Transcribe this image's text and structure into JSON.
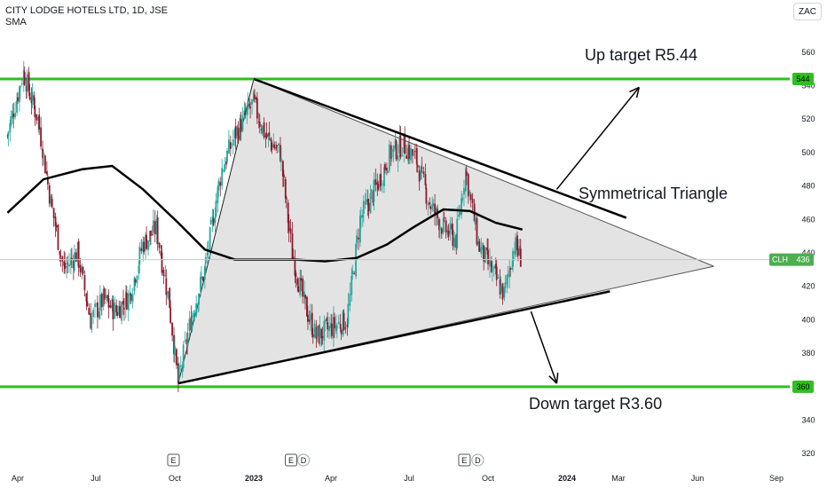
{
  "header": {
    "symbol_line": "CITY LODGE HOTELS LTD, 1D, JSE",
    "indicator": "SMA",
    "currency": "ZAC"
  },
  "annotations": {
    "up": "Up target R5.44",
    "triangle": "Symmetrical Triangle",
    "down": "Down target R3.60"
  },
  "price_axis": {
    "ticks": [
      "560",
      "540",
      "520",
      "500",
      "480",
      "460",
      "440",
      "420",
      "400",
      "380",
      "340",
      "320"
    ],
    "label_544": "544",
    "label_360": "360",
    "ticker": "CLH",
    "last_price": "436"
  },
  "time_axis": {
    "labels": [
      "Apr",
      "Jul",
      "Oct",
      "2023",
      "Apr",
      "Jul",
      "Oct",
      "2024",
      "Mar",
      "Jun",
      "Sep"
    ]
  },
  "event_markers": [
    "E",
    "E",
    "D",
    "E",
    "D"
  ],
  "colors": {
    "up_candle": "#26a69a",
    "down_candle": "#8b1a2b",
    "level_lines": "#2fbf21",
    "triangle_fill": "#e3e3e3",
    "sma": "#000000"
  },
  "chart_data": {
    "type": "candlestick",
    "title": "CITY LODGE HOTELS LTD, 1D, JSE",
    "y_unit": "ZAC",
    "ylim": [
      315,
      570
    ],
    "x_range": [
      "2022-03",
      "2024-09"
    ],
    "levels": [
      544,
      360
    ],
    "last_price": 436,
    "close_path": [
      {
        "date": "2022-03-20",
        "close": 510
      },
      {
        "date": "2022-04-08",
        "close": 548
      },
      {
        "date": "2022-04-25",
        "close": 520
      },
      {
        "date": "2022-05-10",
        "close": 470
      },
      {
        "date": "2022-05-25",
        "close": 430
      },
      {
        "date": "2022-06-10",
        "close": 440
      },
      {
        "date": "2022-06-25",
        "close": 400
      },
      {
        "date": "2022-07-10",
        "close": 412
      },
      {
        "date": "2022-07-25",
        "close": 405
      },
      {
        "date": "2022-08-10",
        "close": 415
      },
      {
        "date": "2022-08-25",
        "close": 445
      },
      {
        "date": "2022-09-10",
        "close": 455
      },
      {
        "date": "2022-09-25",
        "close": 410
      },
      {
        "date": "2022-10-05",
        "close": 362
      },
      {
        "date": "2022-10-20",
        "close": 400
      },
      {
        "date": "2022-11-05",
        "close": 430
      },
      {
        "date": "2022-11-25",
        "close": 490
      },
      {
        "date": "2022-12-10",
        "close": 510
      },
      {
        "date": "2023-01-01",
        "close": 530
      },
      {
        "date": "2023-01-15",
        "close": 510
      },
      {
        "date": "2023-02-01",
        "close": 500
      },
      {
        "date": "2023-02-15",
        "close": 440
      },
      {
        "date": "2023-03-01",
        "close": 410
      },
      {
        "date": "2023-03-15",
        "close": 390
      },
      {
        "date": "2023-04-01",
        "close": 395
      },
      {
        "date": "2023-04-20",
        "close": 400
      },
      {
        "date": "2023-05-05",
        "close": 460
      },
      {
        "date": "2023-05-25",
        "close": 480
      },
      {
        "date": "2023-06-10",
        "close": 500
      },
      {
        "date": "2023-06-25",
        "close": 505
      },
      {
        "date": "2023-07-10",
        "close": 495
      },
      {
        "date": "2023-07-25",
        "close": 470
      },
      {
        "date": "2023-08-10",
        "close": 455
      },
      {
        "date": "2023-08-25",
        "close": 448
      },
      {
        "date": "2023-09-05",
        "close": 490
      },
      {
        "date": "2023-09-20",
        "close": 445
      },
      {
        "date": "2023-10-05",
        "close": 430
      },
      {
        "date": "2023-10-20",
        "close": 415
      },
      {
        "date": "2023-11-01",
        "close": 445
      },
      {
        "date": "2023-11-10",
        "close": 436
      }
    ],
    "sma": [
      {
        "date": "2022-03-20",
        "value": 464
      },
      {
        "date": "2022-05-01",
        "value": 484
      },
      {
        "date": "2022-06-15",
        "value": 490
      },
      {
        "date": "2022-07-20",
        "value": 492
      },
      {
        "date": "2022-08-25",
        "value": 478
      },
      {
        "date": "2022-10-05",
        "value": 458
      },
      {
        "date": "2022-11-05",
        "value": 442
      },
      {
        "date": "2022-12-10",
        "value": 436
      },
      {
        "date": "2023-01-15",
        "value": 436
      },
      {
        "date": "2023-02-20",
        "value": 436
      },
      {
        "date": "2023-03-25",
        "value": 435
      },
      {
        "date": "2023-05-01",
        "value": 437
      },
      {
        "date": "2023-06-05",
        "value": 445
      },
      {
        "date": "2023-07-05",
        "value": 455
      },
      {
        "date": "2023-08-10",
        "value": 466
      },
      {
        "date": "2023-09-10",
        "value": 465
      },
      {
        "date": "2023-10-10",
        "value": 458
      },
      {
        "date": "2023-11-10",
        "value": 454
      }
    ],
    "triangle": {
      "top_start": {
        "date": "2023-01-01",
        "price": 544
      },
      "bottom_start": {
        "date": "2022-10-05",
        "price": 362
      },
      "apex": {
        "date": "2024-06-20",
        "price": 432
      },
      "upper_end_bold": {
        "date": "2024-03-10",
        "price": 461
      },
      "lower_end_bold": {
        "date": "2024-02-20",
        "price": 417
      }
    },
    "arrows": [
      {
        "from_date": "2023-12-20",
        "from_price": 478,
        "to_date": "2024-03-25",
        "to_price": 539
      },
      {
        "from_date": "2023-11-20",
        "from_price": 405,
        "to_date": "2023-12-20",
        "to_price": 362
      }
    ]
  }
}
